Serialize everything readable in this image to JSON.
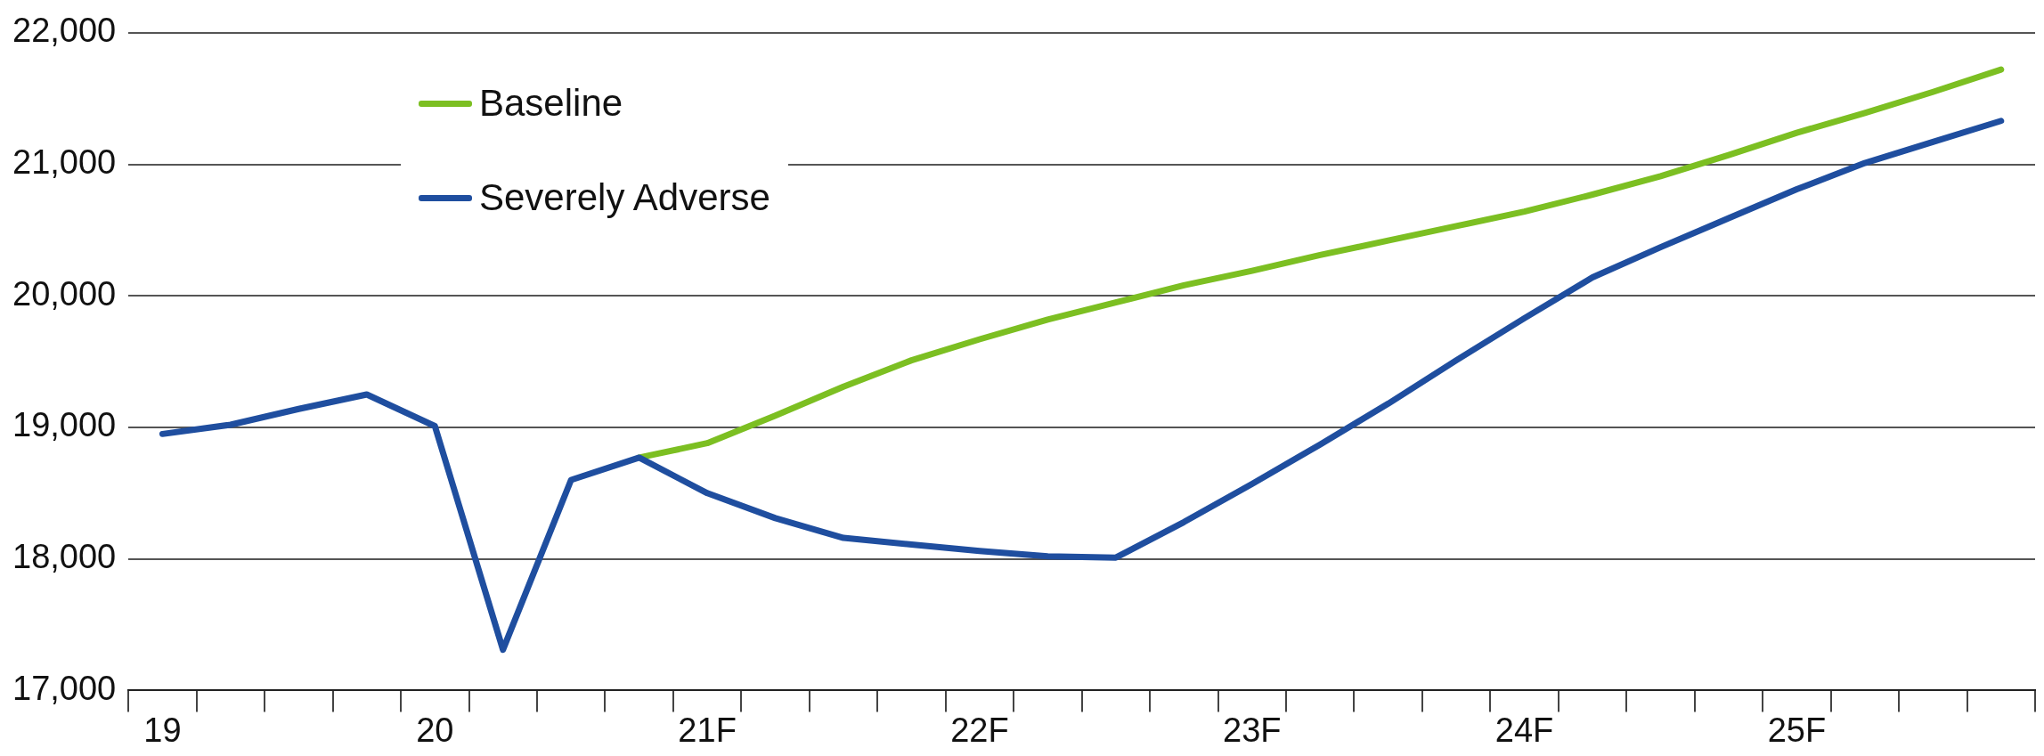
{
  "chart_data": {
    "type": "line",
    "categories": [
      "19",
      null,
      null,
      null,
      "20",
      null,
      null,
      null,
      "21F",
      null,
      null,
      null,
      "22F",
      null,
      null,
      null,
      "23F",
      null,
      null,
      null,
      "24F",
      null,
      null,
      null,
      "25F",
      null,
      null,
      null
    ],
    "series": [
      {
        "name": "Baseline",
        "color": "#7cbf22",
        "values": [
          null,
          null,
          null,
          null,
          null,
          null,
          null,
          18770,
          18880,
          19090,
          19310,
          19510,
          19670,
          19820,
          19950,
          20080,
          20190,
          20310,
          20420,
          20530,
          20640,
          20770,
          20910,
          21070,
          21240,
          21390,
          21550,
          21720
        ]
      },
      {
        "name": "Severely Adverse",
        "color": "#1f4e9f",
        "values": [
          18950,
          19020,
          19140,
          19250,
          19010,
          17310,
          18600,
          18770,
          18500,
          18310,
          18160,
          18110,
          18060,
          18020,
          18010,
          18280,
          18570,
          18870,
          19180,
          19510,
          19830,
          20140,
          20370,
          20590,
          20810,
          21010,
          21170,
          21330
        ]
      }
    ],
    "ylim": [
      17000,
      22000
    ],
    "yticks": [
      {
        "value": 17000,
        "label": "17,000"
      },
      {
        "value": 18000,
        "label": "18,000"
      },
      {
        "value": 19000,
        "label": "19,000"
      },
      {
        "value": 20000,
        "label": "20,000"
      },
      {
        "value": 21000,
        "label": "21,000"
      },
      {
        "value": 22000,
        "label": "22,000"
      }
    ],
    "grid": "y",
    "legend": "top left",
    "marker": "none",
    "line_style": "solid"
  }
}
